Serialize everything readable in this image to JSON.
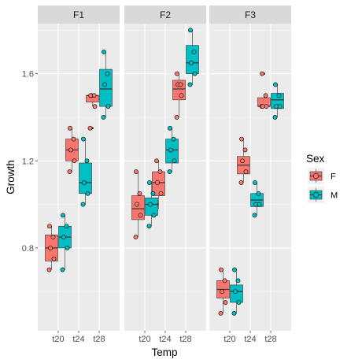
{
  "chart_data": {
    "type": "boxplot",
    "xlabel": "Temp",
    "ylabel": "Growth",
    "ylim": [
      0.42,
      1.83
    ],
    "y_ticks": [
      0.8,
      1.2,
      1.6
    ],
    "categories": [
      "t20",
      "t24",
      "t28"
    ],
    "facets": [
      "F1",
      "F2",
      "F3"
    ],
    "grid": true,
    "legend": {
      "title": "Sex",
      "position": "right",
      "entries": [
        {
          "name": "F",
          "color": "#F8766D"
        },
        {
          "name": "M",
          "color": "#00BFC4"
        }
      ]
    },
    "series": [
      {
        "name": "F",
        "color": "#F8766D",
        "data": {
          "F1": {
            "t20": {
              "min": 0.7,
              "q1": 0.74,
              "median": 0.8,
              "q3": 0.86,
              "max": 0.9,
              "points": [
                0.7,
                0.75,
                0.8,
                0.85,
                0.9
              ]
            },
            "t24": {
              "min": 1.15,
              "q1": 1.2,
              "median": 1.25,
              "q3": 1.3,
              "max": 1.35,
              "points": [
                1.15,
                1.2,
                1.25,
                1.3,
                1.35
              ]
            },
            "t28": {
              "min": 1.45,
              "q1": 1.47,
              "median": 1.5,
              "q3": 1.5,
              "max": 1.5,
              "outliers": [
                1.35
              ],
              "points": [
                1.35,
                1.45,
                1.5,
                1.5,
                1.5
              ]
            }
          },
          "F2": {
            "t20": {
              "min": 0.85,
              "q1": 0.93,
              "median": 0.98,
              "q3": 1.04,
              "max": 1.15,
              "points": [
                0.85,
                0.95,
                1.0,
                1.05,
                1.15
              ]
            },
            "t24": {
              "min": 0.98,
              "q1": 1.04,
              "median": 1.1,
              "q3": 1.15,
              "max": 1.2,
              "points": [
                1.0,
                1.05,
                1.1,
                1.15,
                1.2
              ]
            },
            "t28": {
              "min": 1.4,
              "q1": 1.48,
              "median": 1.53,
              "q3": 1.57,
              "max": 1.6,
              "points": [
                1.4,
                1.5,
                1.55,
                1.55,
                1.6
              ]
            }
          },
          "F3": {
            "t20": {
              "min": 0.5,
              "q1": 0.57,
              "median": 0.61,
              "q3": 0.65,
              "max": 0.7,
              "points": [
                0.5,
                0.55,
                0.6,
                0.65,
                0.7
              ]
            },
            "t24": {
              "min": 1.1,
              "q1": 1.14,
              "median": 1.18,
              "q3": 1.22,
              "max": 1.3,
              "points": [
                1.1,
                1.15,
                1.2,
                1.25,
                1.3
              ]
            },
            "t28": {
              "min": 1.45,
              "q1": 1.45,
              "median": 1.45,
              "q3": 1.49,
              "max": 1.5,
              "outliers": [
                1.6
              ],
              "points": [
                1.45,
                1.45,
                1.45,
                1.5,
                1.6
              ]
            }
          }
        }
      },
      {
        "name": "M",
        "color": "#00BFC4",
        "data": {
          "F1": {
            "t20": {
              "min": 0.7,
              "q1": 0.8,
              "median": 0.85,
              "q3": 0.9,
              "max": 0.95,
              "points": [
                0.7,
                0.8,
                0.85,
                0.9,
                0.95
              ]
            },
            "t24": {
              "min": 1.0,
              "q1": 1.05,
              "median": 1.1,
              "q3": 1.19,
              "max": 1.3,
              "points": [
                1.0,
                1.05,
                1.1,
                1.2,
                1.3
              ]
            },
            "t28": {
              "min": 1.4,
              "q1": 1.45,
              "median": 1.53,
              "q3": 1.62,
              "max": 1.7,
              "points": [
                1.4,
                1.45,
                1.55,
                1.6,
                1.7
              ]
            }
          },
          "F2": {
            "t20": {
              "min": 0.9,
              "q1": 0.95,
              "median": 1.0,
              "q3": 1.03,
              "max": 1.1,
              "points": [
                0.9,
                0.95,
                1.0,
                1.05,
                1.1
              ]
            },
            "t24": {
              "min": 1.15,
              "q1": 1.19,
              "median": 1.25,
              "q3": 1.3,
              "max": 1.35,
              "points": [
                1.15,
                1.2,
                1.25,
                1.3,
                1.35
              ]
            },
            "t28": {
              "min": 1.55,
              "q1": 1.6,
              "median": 1.65,
              "q3": 1.73,
              "max": 1.8,
              "points": [
                1.55,
                1.6,
                1.65,
                1.7,
                1.8
              ]
            }
          },
          "F3": {
            "t20": {
              "min": 0.5,
              "q1": 0.55,
              "median": 0.6,
              "q3": 0.63,
              "max": 0.7,
              "points": [
                0.5,
                0.55,
                0.6,
                0.65,
                0.7
              ]
            },
            "t24": {
              "min": 0.95,
              "q1": 0.99,
              "median": 1.02,
              "q3": 1.05,
              "max": 1.1,
              "points": [
                0.95,
                1.0,
                1.0,
                1.05,
                1.1
              ]
            },
            "t28": {
              "min": 1.4,
              "q1": 1.44,
              "median": 1.48,
              "q3": 1.51,
              "max": 1.55,
              "points": [
                1.4,
                1.45,
                1.45,
                1.5,
                1.55
              ]
            }
          }
        }
      }
    ]
  }
}
